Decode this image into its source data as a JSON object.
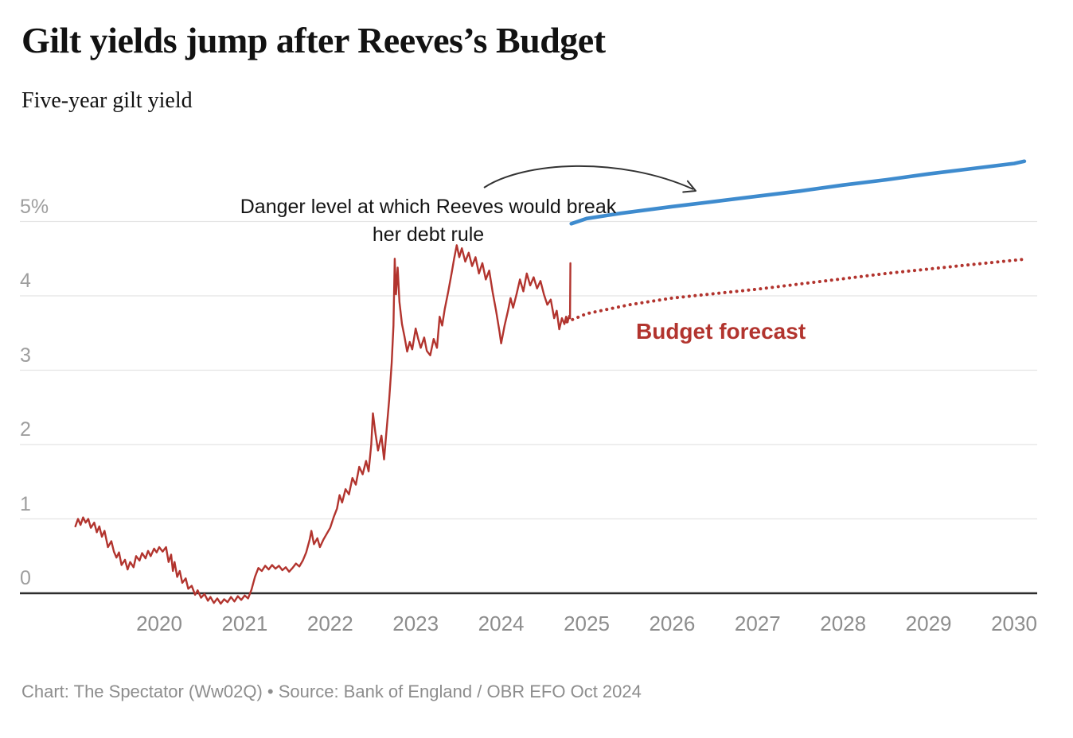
{
  "header": {
    "title": "Gilt yields jump after Reeves’s Budget",
    "subtitle": "Five-year gilt yield"
  },
  "annotations": {
    "danger_line1": "Danger level at which Reeves would break",
    "danger_line2": "her debt rule",
    "forecast_label": "Budget forecast"
  },
  "footer": {
    "credit": "Chart: The Spectator (Ww02Q) • Source: Bank of England / OBR EFO Oct 2024"
  },
  "colors": {
    "red": "#b2342e",
    "blue": "#3e8bce",
    "grid": "#e4e4e4",
    "axis": "#2d2d2d",
    "arrow": "#333333",
    "text": "#121212",
    "tick_y": "#9e9e9e",
    "tick_x": "#8d8d8d",
    "muted": "#8d8d8d"
  },
  "chart_data": {
    "type": "line",
    "title": "Gilt yields jump after Reeves’s Budget",
    "subtitle": "Five-year gilt yield",
    "unit": "%",
    "grid": "horizontal",
    "legend_position": "none",
    "xlim": [
      2019.0,
      2030.3
    ],
    "ylim": [
      -0.3,
      6.0
    ],
    "y_ticks": [
      {
        "value": 0,
        "label": "0"
      },
      {
        "value": 1,
        "label": "1"
      },
      {
        "value": 2,
        "label": "2"
      },
      {
        "value": 3,
        "label": "3"
      },
      {
        "value": 4,
        "label": "4"
      },
      {
        "value": 5,
        "label": "5%"
      }
    ],
    "x_ticks": [
      {
        "value": 2020,
        "label": "2020"
      },
      {
        "value": 2021,
        "label": "2021"
      },
      {
        "value": 2022,
        "label": "2022"
      },
      {
        "value": 2023,
        "label": "2023"
      },
      {
        "value": 2024,
        "label": "2024"
      },
      {
        "value": 2025,
        "label": "2025"
      },
      {
        "value": 2026,
        "label": "2026"
      },
      {
        "value": 2027,
        "label": "2027"
      },
      {
        "value": 2028,
        "label": "2028"
      },
      {
        "value": 2029,
        "label": "2029"
      },
      {
        "value": 2030,
        "label": "2030"
      }
    ],
    "series": [
      {
        "id": "history",
        "name": "Five-year gilt yield (actual)",
        "style": "solid",
        "color": "#b2342e",
        "width": 2.4,
        "points": [
          [
            2019.02,
            0.9
          ],
          [
            2019.05,
            1.0
          ],
          [
            2019.08,
            0.92
          ],
          [
            2019.11,
            1.02
          ],
          [
            2019.14,
            0.95
          ],
          [
            2019.17,
            1.0
          ],
          [
            2019.2,
            0.88
          ],
          [
            2019.24,
            0.95
          ],
          [
            2019.27,
            0.82
          ],
          [
            2019.3,
            0.9
          ],
          [
            2019.33,
            0.76
          ],
          [
            2019.36,
            0.84
          ],
          [
            2019.4,
            0.62
          ],
          [
            2019.44,
            0.7
          ],
          [
            2019.47,
            0.56
          ],
          [
            2019.5,
            0.48
          ],
          [
            2019.53,
            0.55
          ],
          [
            2019.56,
            0.38
          ],
          [
            2019.6,
            0.45
          ],
          [
            2019.63,
            0.32
          ],
          [
            2019.66,
            0.42
          ],
          [
            2019.7,
            0.35
          ],
          [
            2019.73,
            0.5
          ],
          [
            2019.77,
            0.44
          ],
          [
            2019.8,
            0.54
          ],
          [
            2019.84,
            0.47
          ],
          [
            2019.87,
            0.57
          ],
          [
            2019.9,
            0.5
          ],
          [
            2019.94,
            0.6
          ],
          [
            2019.97,
            0.55
          ],
          [
            2020.0,
            0.62
          ],
          [
            2020.04,
            0.56
          ],
          [
            2020.08,
            0.62
          ],
          [
            2020.11,
            0.42
          ],
          [
            2020.14,
            0.52
          ],
          [
            2020.16,
            0.3
          ],
          [
            2020.18,
            0.42
          ],
          [
            2020.21,
            0.22
          ],
          [
            2020.24,
            0.3
          ],
          [
            2020.27,
            0.14
          ],
          [
            2020.31,
            0.2
          ],
          [
            2020.34,
            0.06
          ],
          [
            2020.38,
            0.1
          ],
          [
            2020.42,
            -0.02
          ],
          [
            2020.45,
            0.04
          ],
          [
            2020.49,
            -0.06
          ],
          [
            2020.53,
            -0.01
          ],
          [
            2020.57,
            -0.1
          ],
          [
            2020.6,
            -0.05
          ],
          [
            2020.64,
            -0.13
          ],
          [
            2020.68,
            -0.07
          ],
          [
            2020.72,
            -0.14
          ],
          [
            2020.76,
            -0.08
          ],
          [
            2020.8,
            -0.12
          ],
          [
            2020.84,
            -0.05
          ],
          [
            2020.88,
            -0.11
          ],
          [
            2020.92,
            -0.04
          ],
          [
            2020.96,
            -0.09
          ],
          [
            2021.0,
            -0.03
          ],
          [
            2021.04,
            -0.07
          ],
          [
            2021.08,
            0.05
          ],
          [
            2021.12,
            0.22
          ],
          [
            2021.16,
            0.34
          ],
          [
            2021.2,
            0.3
          ],
          [
            2021.24,
            0.37
          ],
          [
            2021.28,
            0.32
          ],
          [
            2021.32,
            0.38
          ],
          [
            2021.36,
            0.33
          ],
          [
            2021.4,
            0.37
          ],
          [
            2021.44,
            0.31
          ],
          [
            2021.48,
            0.35
          ],
          [
            2021.52,
            0.29
          ],
          [
            2021.56,
            0.34
          ],
          [
            2021.6,
            0.4
          ],
          [
            2021.64,
            0.36
          ],
          [
            2021.68,
            0.44
          ],
          [
            2021.72,
            0.55
          ],
          [
            2021.76,
            0.72
          ],
          [
            2021.78,
            0.84
          ],
          [
            2021.81,
            0.66
          ],
          [
            2021.85,
            0.74
          ],
          [
            2021.88,
            0.62
          ],
          [
            2021.92,
            0.72
          ],
          [
            2021.96,
            0.8
          ],
          [
            2022.0,
            0.88
          ],
          [
            2022.04,
            1.02
          ],
          [
            2022.08,
            1.14
          ],
          [
            2022.11,
            1.32
          ],
          [
            2022.14,
            1.22
          ],
          [
            2022.18,
            1.4
          ],
          [
            2022.22,
            1.33
          ],
          [
            2022.26,
            1.55
          ],
          [
            2022.3,
            1.46
          ],
          [
            2022.34,
            1.7
          ],
          [
            2022.38,
            1.6
          ],
          [
            2022.42,
            1.78
          ],
          [
            2022.45,
            1.64
          ],
          [
            2022.48,
            2.0
          ],
          [
            2022.5,
            2.42
          ],
          [
            2022.53,
            2.15
          ],
          [
            2022.56,
            1.92
          ],
          [
            2022.6,
            2.12
          ],
          [
            2022.63,
            1.8
          ],
          [
            2022.66,
            2.2
          ],
          [
            2022.69,
            2.6
          ],
          [
            2022.72,
            3.1
          ],
          [
            2022.74,
            3.6
          ],
          [
            2022.755,
            4.5
          ],
          [
            2022.77,
            4.02
          ],
          [
            2022.79,
            4.38
          ],
          [
            2022.81,
            3.92
          ],
          [
            2022.84,
            3.62
          ],
          [
            2022.87,
            3.45
          ],
          [
            2022.9,
            3.25
          ],
          [
            2022.93,
            3.38
          ],
          [
            2022.96,
            3.28
          ],
          [
            2023.0,
            3.56
          ],
          [
            2023.03,
            3.42
          ],
          [
            2023.06,
            3.3
          ],
          [
            2023.1,
            3.44
          ],
          [
            2023.13,
            3.26
          ],
          [
            2023.17,
            3.2
          ],
          [
            2023.21,
            3.42
          ],
          [
            2023.25,
            3.3
          ],
          [
            2023.28,
            3.72
          ],
          [
            2023.31,
            3.6
          ],
          [
            2023.34,
            3.82
          ],
          [
            2023.38,
            4.05
          ],
          [
            2023.42,
            4.3
          ],
          [
            2023.45,
            4.5
          ],
          [
            2023.48,
            4.68
          ],
          [
            2023.51,
            4.52
          ],
          [
            2023.54,
            4.64
          ],
          [
            2023.58,
            4.46
          ],
          [
            2023.62,
            4.58
          ],
          [
            2023.66,
            4.4
          ],
          [
            2023.7,
            4.52
          ],
          [
            2023.74,
            4.3
          ],
          [
            2023.78,
            4.44
          ],
          [
            2023.82,
            4.22
          ],
          [
            2023.86,
            4.34
          ],
          [
            2023.9,
            4.05
          ],
          [
            2023.94,
            3.8
          ],
          [
            2023.98,
            3.52
          ],
          [
            2024.0,
            3.36
          ],
          [
            2024.04,
            3.6
          ],
          [
            2024.08,
            3.8
          ],
          [
            2024.11,
            3.97
          ],
          [
            2024.14,
            3.84
          ],
          [
            2024.18,
            4.02
          ],
          [
            2024.22,
            4.22
          ],
          [
            2024.26,
            4.06
          ],
          [
            2024.3,
            4.3
          ],
          [
            2024.34,
            4.14
          ],
          [
            2024.38,
            4.25
          ],
          [
            2024.42,
            4.1
          ],
          [
            2024.46,
            4.2
          ],
          [
            2024.5,
            4.02
          ],
          [
            2024.54,
            3.88
          ],
          [
            2024.58,
            3.95
          ],
          [
            2024.62,
            3.7
          ],
          [
            2024.65,
            3.8
          ],
          [
            2024.68,
            3.55
          ],
          [
            2024.71,
            3.7
          ],
          [
            2024.74,
            3.62
          ],
          [
            2024.76,
            3.72
          ],
          [
            2024.78,
            3.66
          ],
          [
            2024.795,
            3.73
          ],
          [
            2024.805,
            3.7
          ],
          [
            2024.81,
            4.44
          ]
        ]
      },
      {
        "id": "forecast",
        "name": "Budget forecast (OBR EFO Oct 2024)",
        "style": "dotted",
        "color": "#b2342e",
        "width": 4,
        "points": [
          [
            2024.77,
            3.65
          ],
          [
            2025.0,
            3.76
          ],
          [
            2025.5,
            3.88
          ],
          [
            2026.0,
            3.97
          ],
          [
            2026.5,
            4.03
          ],
          [
            2027.0,
            4.09
          ],
          [
            2027.5,
            4.16
          ],
          [
            2028.0,
            4.23
          ],
          [
            2028.5,
            4.3
          ],
          [
            2029.0,
            4.36
          ],
          [
            2029.5,
            4.42
          ],
          [
            2030.1,
            4.49
          ]
        ]
      },
      {
        "id": "danger",
        "name": "Danger level at which Reeves would break her debt rule",
        "style": "solid",
        "color": "#3e8bce",
        "width": 4.6,
        "points": [
          [
            2024.82,
            4.97
          ],
          [
            2025.0,
            5.04
          ],
          [
            2025.4,
            5.11
          ],
          [
            2026.0,
            5.2
          ],
          [
            2026.5,
            5.27
          ],
          [
            2027.0,
            5.34
          ],
          [
            2027.5,
            5.41
          ],
          [
            2028.0,
            5.49
          ],
          [
            2028.5,
            5.56
          ],
          [
            2029.0,
            5.64
          ],
          [
            2029.5,
            5.71
          ],
          [
            2030.0,
            5.78
          ],
          [
            2030.12,
            5.81
          ]
        ]
      }
    ]
  }
}
